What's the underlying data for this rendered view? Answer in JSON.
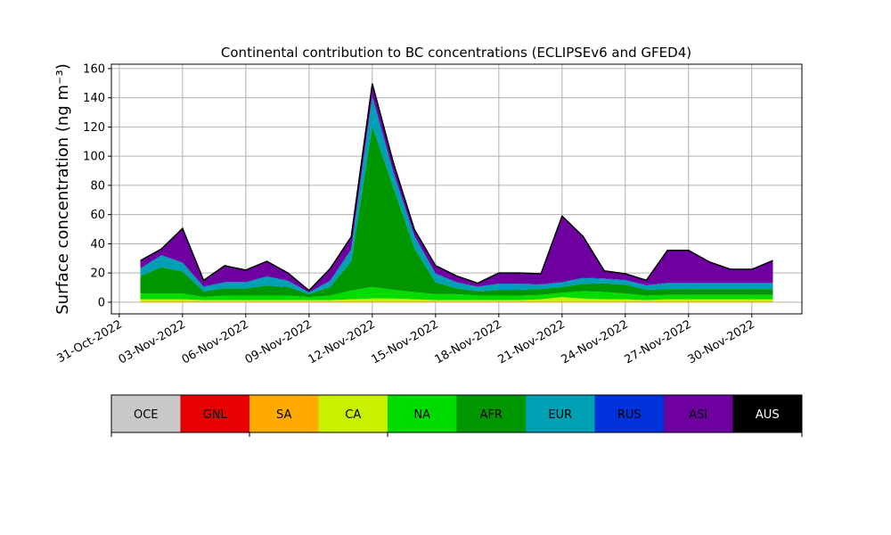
{
  "chart_data": {
    "type": "stacked-area",
    "title": "Continental contribution to BC concentrations (ECLIPSEv6 and GFED4)",
    "ylabel": "Surface concentration (ng m⁻³)",
    "x": [
      "2022-11-01",
      "2022-11-02",
      "2022-11-03",
      "2022-11-04",
      "2022-11-05",
      "2022-11-06",
      "2022-11-07",
      "2022-11-08",
      "2022-11-09",
      "2022-11-10",
      "2022-11-11",
      "2022-11-12",
      "2022-11-13",
      "2022-11-14",
      "2022-11-15",
      "2022-11-16",
      "2022-11-17",
      "2022-11-18",
      "2022-11-19",
      "2022-11-20",
      "2022-11-21",
      "2022-11-22",
      "2022-11-23",
      "2022-11-24",
      "2022-11-25",
      "2022-11-26",
      "2022-11-27",
      "2022-11-28",
      "2022-11-29",
      "2022-11-30",
      "2022-12-01"
    ],
    "xlim": [
      "2022-10-30T15:00:00Z",
      "2022-12-02T09:00:00Z"
    ],
    "xticks": [
      {
        "value": "2022-10-31",
        "label": "31-Oct-2022"
      },
      {
        "value": "2022-11-03",
        "label": "03-Nov-2022"
      },
      {
        "value": "2022-11-06",
        "label": "06-Nov-2022"
      },
      {
        "value": "2022-11-09",
        "label": "09-Nov-2022"
      },
      {
        "value": "2022-11-12",
        "label": "12-Nov-2022"
      },
      {
        "value": "2022-11-15",
        "label": "15-Nov-2022"
      },
      {
        "value": "2022-11-18",
        "label": "18-Nov-2022"
      },
      {
        "value": "2022-11-21",
        "label": "21-Nov-2022"
      },
      {
        "value": "2022-11-24",
        "label": "24-Nov-2022"
      },
      {
        "value": "2022-11-27",
        "label": "27-Nov-2022"
      },
      {
        "value": "2022-11-30",
        "label": "30-Nov-2022"
      }
    ],
    "ylim": [
      -8,
      163
    ],
    "yticks": [
      0,
      20,
      40,
      60,
      80,
      100,
      120,
      140,
      160
    ],
    "grid": true,
    "series": [
      {
        "name": "OCE",
        "color": "#c8c8c8",
        "values": [
          0.1,
          0.1,
          0.1,
          0.1,
          0.1,
          0.1,
          0.1,
          0.1,
          0.1,
          0.1,
          0.1,
          0.1,
          0.1,
          0.1,
          0.1,
          0.1,
          0.1,
          0.1,
          0.1,
          0.1,
          0.1,
          0.1,
          0.1,
          0.1,
          0.1,
          0.1,
          0.1,
          0.1,
          0.1,
          0.1,
          0.1
        ]
      },
      {
        "name": "GNL",
        "color": "#e60000",
        "values": [
          0.1,
          0.1,
          0.1,
          0.1,
          0.1,
          0.1,
          0.1,
          0.1,
          0.1,
          0.1,
          0.1,
          0.1,
          0.1,
          0.1,
          0.1,
          0.1,
          0.1,
          0.1,
          0.1,
          0.1,
          0.1,
          0.1,
          0.1,
          0.1,
          0.1,
          0.1,
          0.1,
          0.1,
          0.1,
          0.1,
          0.1
        ]
      },
      {
        "name": "SA",
        "color": "#ffaa00",
        "values": [
          0.3,
          0.3,
          0.3,
          0.3,
          0.3,
          0.3,
          0.3,
          0.3,
          0.3,
          0.3,
          0.3,
          0.3,
          0.3,
          0.3,
          0.3,
          0.3,
          0.3,
          0.3,
          0.3,
          0.3,
          0.3,
          0.3,
          0.3,
          0.3,
          0.3,
          0.3,
          0.3,
          0.3,
          0.3,
          0.3,
          0.3
        ]
      },
      {
        "name": "CA",
        "color": "#c8f000",
        "values": [
          1.5,
          1.5,
          1.5,
          1,
          1,
          1,
          1,
          1,
          1,
          1,
          1.5,
          2,
          2,
          1.5,
          1,
          1,
          1,
          1,
          1,
          1.5,
          3,
          2,
          1.5,
          1.5,
          1,
          1.5,
          1.5,
          1.5,
          1.5,
          1.5,
          1.5
        ]
      },
      {
        "name": "NA",
        "color": "#00dc00",
        "values": [
          4,
          4,
          4,
          2,
          3,
          3,
          3,
          3,
          2,
          3,
          6,
          8,
          6,
          5,
          4,
          4,
          3,
          3,
          3,
          3,
          3,
          5,
          5,
          4,
          3,
          3,
          3,
          3,
          3,
          3,
          3
        ]
      },
      {
        "name": "AFR",
        "color": "#009600",
        "values": [
          12,
          18,
          15,
          4,
          5,
          5,
          7,
          6,
          2,
          6,
          20,
          110,
          70,
          30,
          8,
          4,
          3,
          4,
          4,
          4,
          4,
          5,
          6,
          6,
          4,
          4,
          4,
          4,
          4,
          4,
          4
        ]
      },
      {
        "name": "EUR",
        "color": "#00a0b4",
        "values": [
          5,
          8,
          6,
          3,
          4,
          4,
          6,
          4,
          1,
          4,
          8,
          20,
          10,
          8,
          6,
          4,
          3,
          4,
          4,
          3,
          3,
          4,
          3,
          3,
          3,
          4,
          4,
          4,
          4,
          4,
          4
        ]
      },
      {
        "name": "RUS",
        "color": "#0032dc",
        "values": [
          0.3,
          0.3,
          0.3,
          0.3,
          0.3,
          0.3,
          0.3,
          0.3,
          0.3,
          0.3,
          0.5,
          1,
          0.8,
          0.5,
          0.3,
          0.3,
          0.3,
          0.3,
          0.3,
          0.3,
          0.3,
          0.3,
          0.3,
          0.3,
          0.3,
          0.3,
          0.3,
          0.3,
          0.3,
          0.3,
          0.3
        ]
      },
      {
        "name": "ASI",
        "color": "#6e00a0",
        "values": [
          5,
          4,
          23,
          4,
          11,
          8,
          10,
          5,
          1,
          8,
          8,
          8,
          6,
          4,
          5,
          4,
          2,
          7,
          7,
          7,
          45,
          28,
          5,
          4,
          3,
          22,
          22,
          14,
          9,
          9,
          15
        ]
      },
      {
        "name": "AUS",
        "color": "#000000",
        "values": [
          0.2,
          0.2,
          0.2,
          0.2,
          0.2,
          0.2,
          0.2,
          0.2,
          0.2,
          0.2,
          0.2,
          0.2,
          0.2,
          0.2,
          0.2,
          0.2,
          0.2,
          0.2,
          0.2,
          0.2,
          0.2,
          0.2,
          0.2,
          0.2,
          0.2,
          0.2,
          0.2,
          0.2,
          0.2,
          0.2,
          0.2
        ]
      }
    ]
  }
}
